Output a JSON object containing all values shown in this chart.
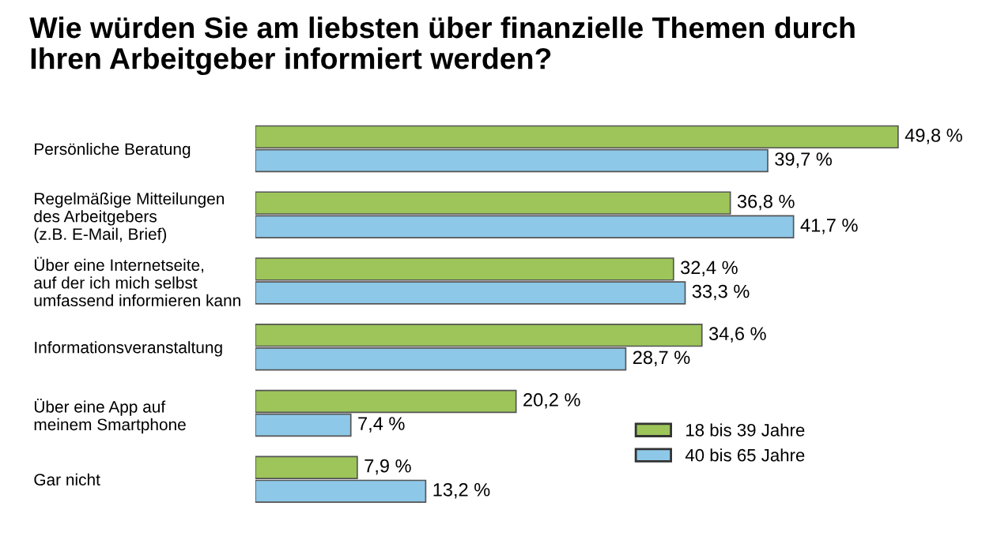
{
  "chart_data": {
    "type": "bar",
    "orientation": "horizontal",
    "title": "Wie würden Sie am liebsten über finanzielle Themen durch\nIhren Arbeitgeber informiert werden?",
    "categories": [
      "Persönliche Beratung",
      "Regelmäßige Mitteilungen\ndes Arbeitgebers\n(z.B. E-Mail, Brief)",
      "Über eine Internetseite,\nauf der ich mich selbst\numfassend informieren kann",
      "Informationsveranstaltung",
      "Über eine App auf\nmeinem Smartphone",
      "Gar nicht"
    ],
    "series": [
      {
        "name": "18 bis 39 Jahre",
        "color": "#9dc55a",
        "values": [
          49.8,
          36.8,
          32.4,
          34.6,
          20.2,
          7.9
        ],
        "value_labels": [
          "49,8 %",
          "36,8 %",
          "32,4 %",
          "34,6 %",
          "20,2 %",
          "7,9 %"
        ]
      },
      {
        "name": "40 bis 65 Jahre",
        "color": "#8ec8e8",
        "values": [
          39.7,
          41.7,
          33.3,
          28.7,
          7.4,
          13.2
        ],
        "value_labels": [
          "39,7 %",
          "41,7 %",
          "33,3 %",
          "28,7 %",
          "7,4 %",
          "13,2 %"
        ]
      }
    ],
    "tick_labels": false,
    "legend": "bottom right",
    "grid": false
  }
}
